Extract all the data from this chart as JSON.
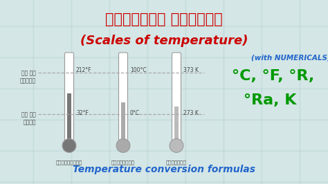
{
  "bg_color": "#ddeaea",
  "title_hindi": "तापक्रम पैमाने",
  "title_english": "(Scales of temperature)",
  "subtitle": "(with NUMERICALS)",
  "scales_line1": "°C, °F, °R,",
  "scales_line2": "°Ra, K",
  "bottom_text": "Temperature conversion formulas",
  "thermo1_label": "फारेनहाइट",
  "thermo2_label": "सेल्सियस",
  "thermo3_label": "केल्विन",
  "high_label_hindi": "जल का\nउबलना",
  "low_label_hindi": "जल का\nजमना",
  "f_high": "212°F",
  "f_low": "32°F",
  "c_high": "100°C",
  "c_low": "0°C",
  "k_high": "373 K",
  "k_low": "273 K",
  "hindi_color": "#cc0000",
  "english_color": "#cc0000",
  "subtitle_color": "#2266cc",
  "scales_color": "#009900",
  "bottom_color": "#2266cc",
  "dashed_line_color": "#aaaaaa",
  "tile_face": "#cde3e3",
  "tile_edge": "#b0cccc",
  "label_color": "#444444",
  "thermo_tube_color": "#cccccc",
  "thermo_mercury1": "#777777",
  "thermo_mercury2": "#aaaaaa",
  "thermo_mercury3": "#bbbbbb"
}
